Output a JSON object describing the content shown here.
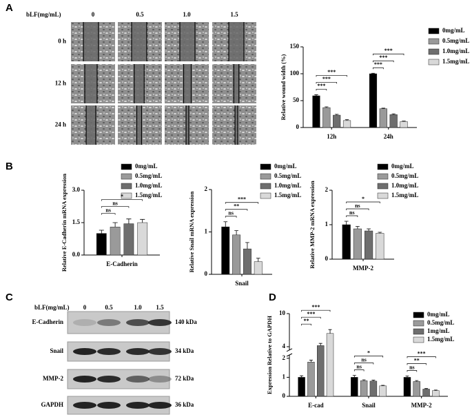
{
  "panel_labels": [
    "A",
    "B",
    "C",
    "D"
  ],
  "migration": {
    "header": "bLF(mg/mL)",
    "concentrations": [
      "0",
      "0.5",
      "1.0",
      "1.5"
    ],
    "times": [
      "0 h",
      "12 h",
      "24 h"
    ]
  },
  "blot": {
    "header": "bLF(mg/mL)",
    "concentrations": [
      "0",
      "0.5",
      "1.0",
      "1.5"
    ],
    "rows": [
      {
        "protein": "E-Cadherin",
        "size": "140 kDa"
      },
      {
        "protein": "Snail",
        "size": "34 kDa"
      },
      {
        "protein": "MMP-2",
        "size": "72 kDa"
      },
      {
        "protein": "GAPDH",
        "size": "36 kDa"
      }
    ]
  },
  "chart_data": [
    {
      "type": "bar",
      "ylabel": "Relative wound width (%)",
      "categories": [
        "12h",
        "24h"
      ],
      "series": [
        {
          "name": "0mg/mL",
          "color": "#000000",
          "values": [
            59,
            100
          ],
          "errors": [
            2,
            1
          ]
        },
        {
          "name": "0.5mg/mL",
          "color": "#9a9a9a",
          "values": [
            37,
            35
          ],
          "errors": [
            1.5,
            1
          ]
        },
        {
          "name": "1.0mg/mL",
          "color": "#6e6e6e",
          "values": [
            23,
            24
          ],
          "errors": [
            1.5,
            1.5
          ]
        },
        {
          "name": "1.5mg/mL",
          "color": "#d9d9d9",
          "values": [
            13,
            11
          ],
          "errors": [
            1.5,
            1
          ]
        }
      ],
      "ylim": [
        0,
        150
      ],
      "yticks": [
        0,
        50,
        100,
        150
      ],
      "significance": [
        {
          "label": "***",
          "category": 0,
          "from": 0,
          "to": 1
        },
        {
          "label": "***",
          "category": 0,
          "from": 0,
          "to": 2
        },
        {
          "label": "***",
          "category": 0,
          "from": 0,
          "to": 3
        },
        {
          "label": "***",
          "category": 1,
          "from": 0,
          "to": 1
        },
        {
          "label": "***",
          "category": 1,
          "from": 0,
          "to": 2
        },
        {
          "label": "***",
          "category": 1,
          "from": 0,
          "to": 3
        }
      ]
    },
    {
      "type": "bar",
      "ylabel": "Relative E-Cadherin mRNA expression",
      "categories": [
        "E-Cadherin"
      ],
      "series": [
        {
          "name": "0mg/mL",
          "color": "#000000",
          "values": [
            1.0
          ],
          "errors": [
            0.15
          ]
        },
        {
          "name": "0.5mg/mL",
          "color": "#9a9a9a",
          "values": [
            1.3
          ],
          "errors": [
            0.2
          ]
        },
        {
          "name": "1.0mg/mL",
          "color": "#6e6e6e",
          "values": [
            1.45
          ],
          "errors": [
            0.22
          ]
        },
        {
          "name": "1.5mg/mL",
          "color": "#d9d9d9",
          "values": [
            1.5
          ],
          "errors": [
            0.15
          ]
        }
      ],
      "ylim": [
        0,
        3
      ],
      "yticks": [
        {
          "value": 0,
          "label": "0.0"
        },
        1.5,
        {
          "value": 3,
          "label": "3.0"
        }
      ],
      "significance": [
        {
          "label": "ns",
          "category": 0,
          "from": 0,
          "to": 1
        },
        {
          "label": "ns",
          "category": 0,
          "from": 0,
          "to": 2
        },
        {
          "label": "*",
          "category": 0,
          "from": 0,
          "to": 3
        }
      ]
    },
    {
      "type": "bar",
      "ylabel": "Relative Snail mRNA expression",
      "categories": [
        "Snail"
      ],
      "series": [
        {
          "name": "0mg/mL",
          "color": "#000000",
          "values": [
            1.12
          ],
          "errors": [
            0.12
          ]
        },
        {
          "name": "0.5mg/mL",
          "color": "#9a9a9a",
          "values": [
            0.93
          ],
          "errors": [
            0.1
          ]
        },
        {
          "name": "1.0mg/mL",
          "color": "#6e6e6e",
          "values": [
            0.6
          ],
          "errors": [
            0.15
          ]
        },
        {
          "name": "1.5mg/mL",
          "color": "#d9d9d9",
          "values": [
            0.3
          ],
          "errors": [
            0.08
          ]
        }
      ],
      "ylim": [
        0,
        2
      ],
      "yticks": [
        0,
        1,
        2
      ],
      "significance": [
        {
          "label": "ns",
          "category": 0,
          "from": 0,
          "to": 1
        },
        {
          "label": "**",
          "category": 0,
          "from": 0,
          "to": 2
        },
        {
          "label": "***",
          "category": 0,
          "from": 0,
          "to": 3
        }
      ]
    },
    {
      "type": "bar",
      "ylabel": "Relative MMP-2 mRNA expression",
      "categories": [
        "MMP-2"
      ],
      "series": [
        {
          "name": "0mg/mL",
          "color": "#000000",
          "values": [
            1.0
          ],
          "errors": [
            0.1
          ]
        },
        {
          "name": "0.5mg/mL",
          "color": "#9a9a9a",
          "values": [
            0.88
          ],
          "errors": [
            0.07
          ]
        },
        {
          "name": "1.0mg/mL",
          "color": "#6e6e6e",
          "values": [
            0.82
          ],
          "errors": [
            0.06
          ]
        },
        {
          "name": "1.5mg/mL",
          "color": "#d9d9d9",
          "values": [
            0.75
          ],
          "errors": [
            0.03
          ]
        }
      ],
      "ylim": [
        0,
        2
      ],
      "yticks": [
        0,
        1,
        2
      ],
      "significance": [
        {
          "label": "ns",
          "category": 0,
          "from": 0,
          "to": 1
        },
        {
          "label": "ns",
          "category": 0,
          "from": 0,
          "to": 2
        },
        {
          "label": "*",
          "category": 0,
          "from": 0,
          "to": 3
        }
      ]
    },
    {
      "type": "bar",
      "ylabel": "Expression Relative to GAPDH",
      "categories": [
        "E-cad",
        "Snail",
        "MMP-2"
      ],
      "series": [
        {
          "name": "0mg/mL",
          "color": "#000000",
          "values": [
            1.0,
            1.0,
            1.0
          ],
          "errors": [
            0.08,
            0.1,
            0.07
          ]
        },
        {
          "name": "0.5mg/mL",
          "color": "#9a9a9a",
          "values": [
            1.8,
            0.82,
            0.78
          ],
          "errors": [
            0.1,
            0.05,
            0.05
          ]
        },
        {
          "name": "1mg/mL",
          "color": "#6e6e6e",
          "values": [
            4.2,
            0.8,
            0.38
          ],
          "errors": [
            0.4,
            0.05,
            0.03
          ]
        },
        {
          "name": "1.5mg/mL",
          "color": "#d9d9d9",
          "values": [
            6.4,
            0.55,
            0.3
          ],
          "errors": [
            0.7,
            0.03,
            0.03
          ]
        }
      ],
      "ylim": [
        0,
        10
      ],
      "yticks": [
        0,
        1,
        2,
        4,
        10
      ],
      "axis_break": [
        2,
        4
      ],
      "significance": [
        {
          "label": "**",
          "category": 0,
          "from": 0,
          "to": 1
        },
        {
          "label": "***",
          "category": 0,
          "from": 0,
          "to": 2
        },
        {
          "label": "***",
          "category": 0,
          "from": 0,
          "to": 3
        },
        {
          "label": "ns",
          "category": 1,
          "from": 0,
          "to": 1
        },
        {
          "label": "ns",
          "category": 1,
          "from": 0,
          "to": 2
        },
        {
          "label": "*",
          "category": 1,
          "from": 0,
          "to": 3
        },
        {
          "label": "ns",
          "category": 2,
          "from": 0,
          "to": 1
        },
        {
          "label": "**",
          "category": 2,
          "from": 0,
          "to": 2
        },
        {
          "label": "***",
          "category": 2,
          "from": 0,
          "to": 3
        }
      ]
    }
  ]
}
